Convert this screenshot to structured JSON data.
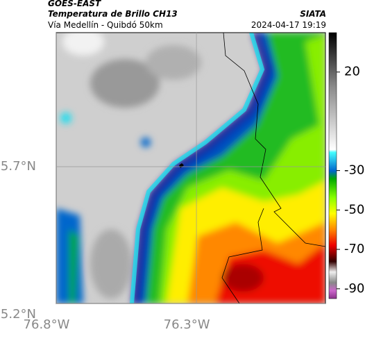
{
  "header": {
    "satellite": "GOES-EAST",
    "product": "Temperatura de Brillo CH13",
    "route": "Vía Medellín - Quibdó 50km",
    "agency": "SIATA",
    "datetime": "2024-04-17 19:19"
  },
  "chart_data": {
    "type": "map",
    "xlim": [
      -76.8,
      -75.84
    ],
    "ylim": [
      5.2,
      6.19
    ],
    "xticks": [
      {
        "value": -76.8,
        "label": "76.8°W"
      },
      {
        "value": -76.3,
        "label": "76.3°W"
      }
    ],
    "yticks": [
      {
        "value": 5.7,
        "label": "5.7°N"
      },
      {
        "value": 5.2,
        "label": "5.2°N"
      }
    ],
    "grid": true,
    "colorbar": {
      "lim": [
        -95,
        40
      ],
      "ticks": [
        20,
        -30,
        -50,
        -70,
        -90
      ]
    }
  }
}
